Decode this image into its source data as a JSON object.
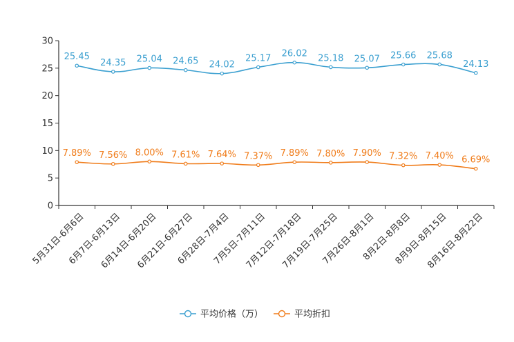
{
  "chart_data": {
    "type": "line",
    "title": "",
    "xlabel": "",
    "ylabel": "",
    "ylim": [
      0,
      30
    ],
    "yticks": [
      0,
      5,
      10,
      15,
      20,
      25,
      30
    ],
    "categories": [
      "5月31日-6月6日",
      "6月7日-6月13日",
      "6月14日-6月20日",
      "6月21日-6月27日",
      "6月28日-7月4日",
      "7月5日-7月11日",
      "7月12日-7月18日",
      "7月19日-7月25日",
      "7月26日-8月1日",
      "8月2日-8月8日",
      "8月9日-8月15日",
      "8月16日-8月22日"
    ],
    "series": [
      {
        "name": "平均价格（万）",
        "color": "#3a9fd0",
        "values": [
          25.45,
          24.35,
          25.04,
          24.65,
          24.02,
          25.17,
          26.02,
          25.18,
          25.07,
          25.66,
          25.68,
          24.13
        ],
        "labels": [
          "25.45",
          "24.35",
          "25.04",
          "24.65",
          "24.02",
          "25.17",
          "26.02",
          "25.18",
          "25.07",
          "25.66",
          "25.68",
          "24.13"
        ]
      },
      {
        "name": "平均折扣",
        "color": "#f07c1a",
        "values": [
          7.89,
          7.56,
          8.0,
          7.61,
          7.64,
          7.37,
          7.89,
          7.8,
          7.9,
          7.32,
          7.4,
          6.69
        ],
        "labels": [
          "7.89%",
          "7.56%",
          "8.00%",
          "7.61%",
          "7.64%",
          "7.37%",
          "7.89%",
          "7.80%",
          "7.90%",
          "7.32%",
          "7.40%",
          "6.69%"
        ]
      }
    ],
    "legend": "bottom-center",
    "grid": false
  }
}
